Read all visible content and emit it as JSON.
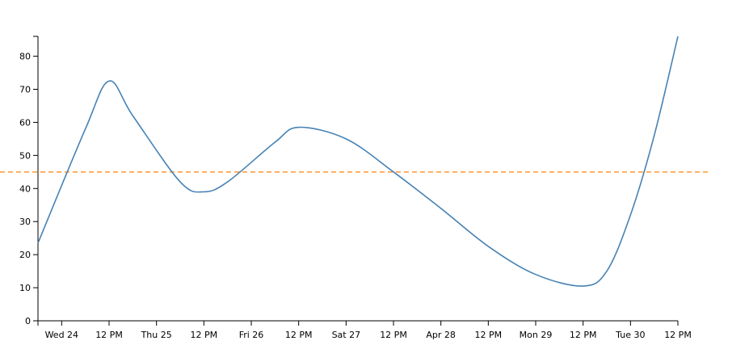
{
  "chart_data": {
    "type": "line",
    "title": "",
    "xlabel": "",
    "ylabel": "",
    "x_tick_labels": [
      "Wed 24",
      "12 PM",
      "Thu 25",
      "12 PM",
      "Fri 26",
      "12 PM",
      "Sat 27",
      "12 PM",
      "Apr 28",
      "12 PM",
      "Mon 29",
      "12 PM",
      "Tue 30",
      "12 PM"
    ],
    "y_ticks": [
      0,
      10,
      20,
      30,
      40,
      50,
      60,
      70,
      80
    ],
    "ylim": [
      0,
      86
    ],
    "x_range": [
      "Apr 23 18:00",
      "Apr 30 12:00"
    ],
    "grid": false,
    "series": [
      {
        "color": "#4682b4",
        "points": [
          {
            "x": "Apr 23 18:00",
            "y": 23.5
          },
          {
            "x": "Apr 24 06:00",
            "y": 58
          },
          {
            "x": "Apr 24 12:00",
            "y": 72.5
          },
          {
            "x": "Apr 24 18:00",
            "y": 62
          },
          {
            "x": "Apr 25 06:00",
            "y": 42
          },
          {
            "x": "Apr 25 12:00",
            "y": 39
          },
          {
            "x": "Apr 25 18:00",
            "y": 42
          },
          {
            "x": "Apr 26 06:00",
            "y": 54
          },
          {
            "x": "Apr 26 12:00",
            "y": 58.5
          },
          {
            "x": "Apr 27 00:00",
            "y": 55
          },
          {
            "x": "Apr 27 12:00",
            "y": 45
          },
          {
            "x": "Apr 28 00:00",
            "y": 34
          },
          {
            "x": "Apr 28 12:00",
            "y": 22.5
          },
          {
            "x": "Apr 29 00:00",
            "y": 14
          },
          {
            "x": "Apr 29 12:00",
            "y": 10.5
          },
          {
            "x": "Apr 29 18:00",
            "y": 15
          },
          {
            "x": "Apr 30 00:00",
            "y": 32
          },
          {
            "x": "Apr 30 06:00",
            "y": 56
          },
          {
            "x": "Apr 30 12:00",
            "y": 86
          }
        ]
      }
    ],
    "reference_line": {
      "y": 45,
      "color": "#ff9f40",
      "style": "dashed"
    }
  }
}
